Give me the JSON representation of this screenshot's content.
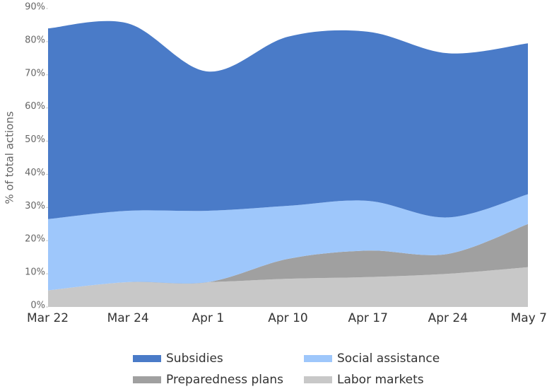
{
  "chart_data": {
    "type": "stacked_area",
    "y_label": "% of total actions",
    "categories": [
      "Mar 22",
      "Mar 24",
      "Apr 1",
      "Apr 10",
      "Apr 17",
      "Apr 24",
      "May 7"
    ],
    "series": [
      {
        "name": "Subsidies",
        "color": "#4a7bc8",
        "values": [
          57.5,
          56.5,
          42,
          51,
          51,
          49.5,
          45.5
        ]
      },
      {
        "name": "Social assistance",
        "color": "#9ec7fb",
        "values": [
          21.5,
          21.5,
          21.5,
          16,
          15,
          11,
          9
        ]
      },
      {
        "name": "Preparedness plans",
        "color": "#a0a0a0",
        "values": [
          0,
          0,
          0,
          6,
          8,
          6,
          13
        ]
      },
      {
        "name": "Labor markets",
        "color": "#c8c8c8",
        "values": [
          5,
          7.5,
          7.5,
          8.5,
          9,
          10,
          12
        ]
      }
    ],
    "ylim": [
      0,
      90
    ],
    "yticks": [
      {
        "value": 0,
        "label": "0%"
      },
      {
        "value": 10,
        "label": "10%"
      },
      {
        "value": 20,
        "label": "20%"
      },
      {
        "value": 30,
        "label": "30%"
      },
      {
        "value": 40,
        "label": "40%"
      },
      {
        "value": 50,
        "label": "50%"
      },
      {
        "value": 60,
        "label": "60%"
      },
      {
        "value": 70,
        "label": "70%"
      },
      {
        "value": 80,
        "label": "80%"
      },
      {
        "value": 90,
        "label": "90%"
      }
    ]
  }
}
